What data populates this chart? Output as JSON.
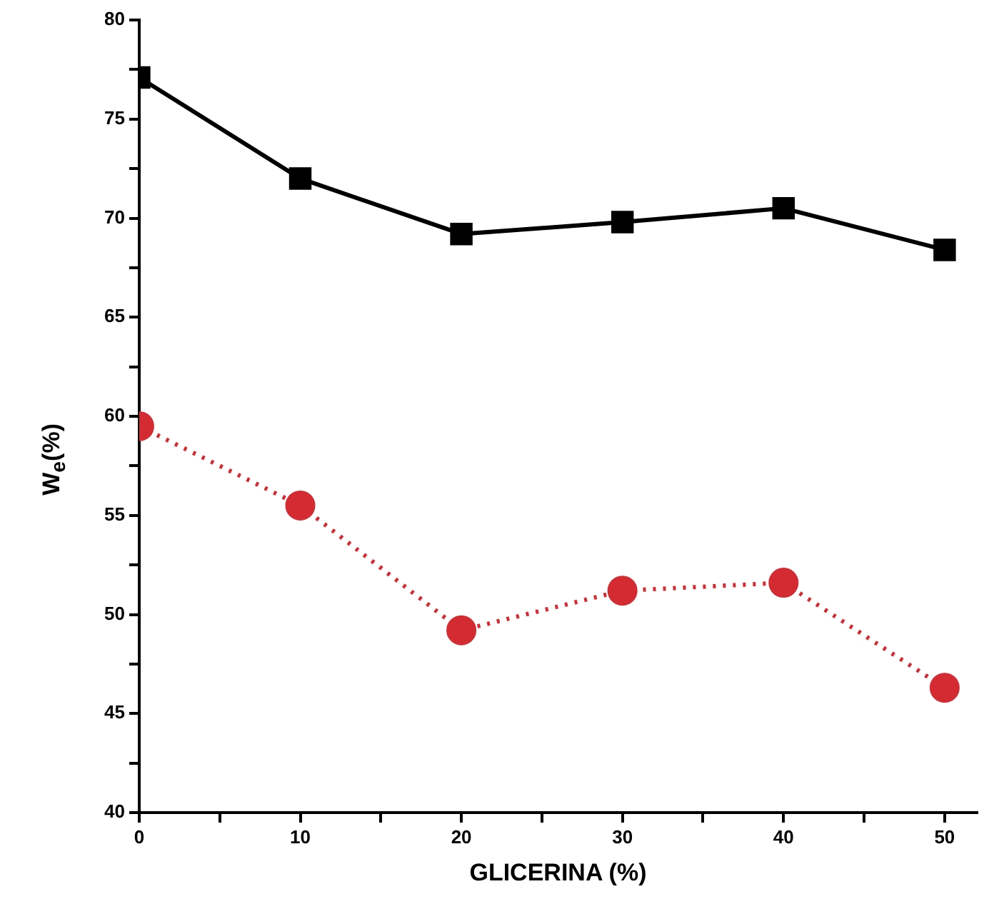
{
  "chart_data": {
    "type": "line",
    "xlabel": "GLICERINA (%)",
    "ylabel": "W$_{e}$(%)",
    "x": [
      0,
      10,
      20,
      30,
      40,
      50
    ],
    "series": [
      {
        "color": "#000000",
        "marker": "square",
        "line_style": "solid",
        "values": [
          77.1,
          72.0,
          69.2,
          69.8,
          70.5,
          68.4
        ]
      },
      {
        "color": "#d42a32",
        "marker": "circle",
        "line_style": "dotted",
        "values": [
          59.5,
          55.5,
          49.2,
          51.2,
          51.6,
          46.3
        ]
      }
    ],
    "xlim": [
      0,
      52
    ],
    "ylim": [
      40,
      80
    ],
    "xticks": [
      0,
      {
        "value": 5,
        "label": null
      },
      10,
      {
        "value": 15,
        "label": null
      },
      20,
      {
        "value": 25,
        "label": null
      },
      30,
      {
        "value": 35,
        "label": null
      },
      40,
      {
        "value": 45,
        "label": null
      },
      50
    ],
    "yticks": [
      40,
      {
        "value": 42.5,
        "label": null
      },
      45,
      {
        "value": 47.5,
        "label": null
      },
      50,
      {
        "value": 52.5,
        "label": null
      },
      55,
      {
        "value": 57.5,
        "label": null
      },
      60,
      {
        "value": 62.5,
        "label": null
      },
      65,
      {
        "value": 67.5,
        "label": null
      },
      70,
      {
        "value": 72.5,
        "label": null
      },
      75,
      {
        "value": 77.5,
        "label": null
      },
      80
    ],
    "grid": false,
    "legend": false
  }
}
